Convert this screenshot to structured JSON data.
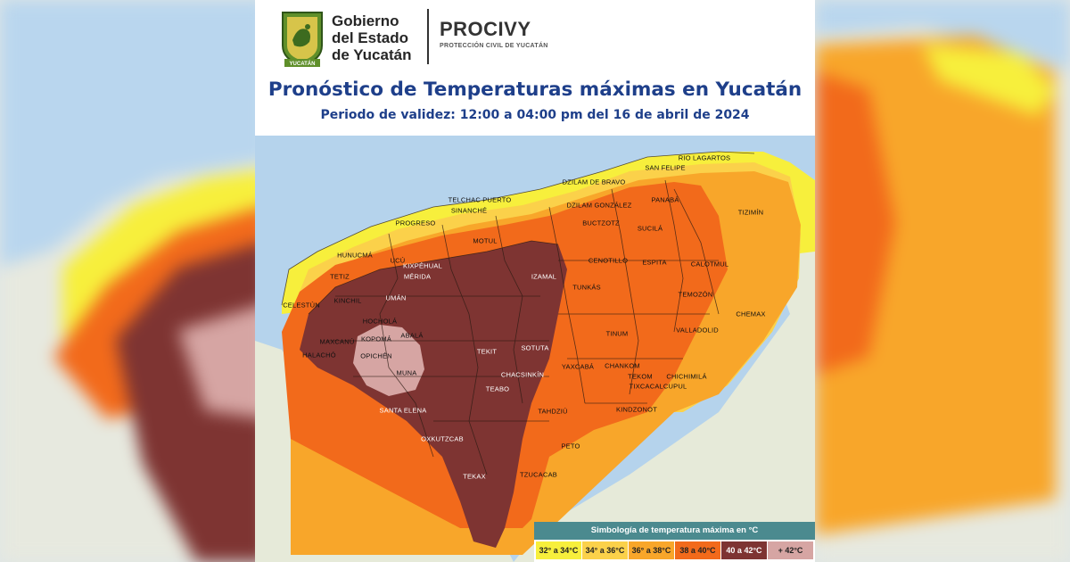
{
  "header": {
    "gov_line1": "Gobierno",
    "gov_line2": "del Estado",
    "gov_line3": "de Yucatán",
    "logo_banner": "YUCATÁN",
    "org": "PROCIVY",
    "org_subtitle": "PROTECCIÓN CIVIL DE YUCATÁN"
  },
  "title": "Pronóstico de Temperaturas máximas en Yucatán",
  "subtitle": "Periodo de validez: 12:00 a 04:00 pm del 16 de abril de 2024",
  "legend": {
    "title": "Simbología de temperatura máxima en °C",
    "items": [
      {
        "label": "32° a 34°C",
        "color": "#f7ef3c"
      },
      {
        "label": "34° a 36°C",
        "color": "#fbd14a"
      },
      {
        "label": "36° a 38°C",
        "color": "#f8a62a"
      },
      {
        "label": "38 a 40°C",
        "color": "#f26a1b"
      },
      {
        "label": "40 a 42°C",
        "color": "#7e3432"
      },
      {
        "label": "+ 42°C",
        "color": "#d6a5a3"
      }
    ]
  },
  "municipalities": [
    "RIO LAGARTOS",
    "SAN FELIPE",
    "DZILAM DE BRAVO",
    "TELCHAC PUERTO",
    "SINANCHÉ",
    "PROGRESO",
    "DZILAM GONZÁLEZ",
    "PANABÁ",
    "TIZIMÍN",
    "BUCTZOTZ",
    "SUCILÁ",
    "MOTUL",
    "HUNUCMÁ",
    "UCÚ",
    "KIXPÉHUAL",
    "MÉRIDA",
    "ESPITA",
    "CALOTMUL",
    "CENOTILLO",
    "TETIZ",
    "CELESTÚN",
    "KINCHIL",
    "UMÁN",
    "IZAMAL",
    "TUNKÁS",
    "TEMOZÓN",
    "CHEMAX",
    "HOCHOLÁ",
    "KOPOMÁ",
    "ABALÁ",
    "MAXCANÚ",
    "VALLADOLID",
    "OPICHÉN",
    "TINUM",
    "HALACHÓ",
    "TEKIT",
    "SOTUTA",
    "MUNA",
    "YAXCABÁ",
    "CHANKOM",
    "TEKOM",
    "CHACSINKÍN",
    "TIXCACALCUPUL",
    "CHICHIMILÁ",
    "TEABO",
    "SANTA ELENA",
    "KINDZONOT",
    "TAHDZIÚ",
    "OXKUTZCAB",
    "PETO",
    "TEKAX",
    "TZUCACAB"
  ]
}
